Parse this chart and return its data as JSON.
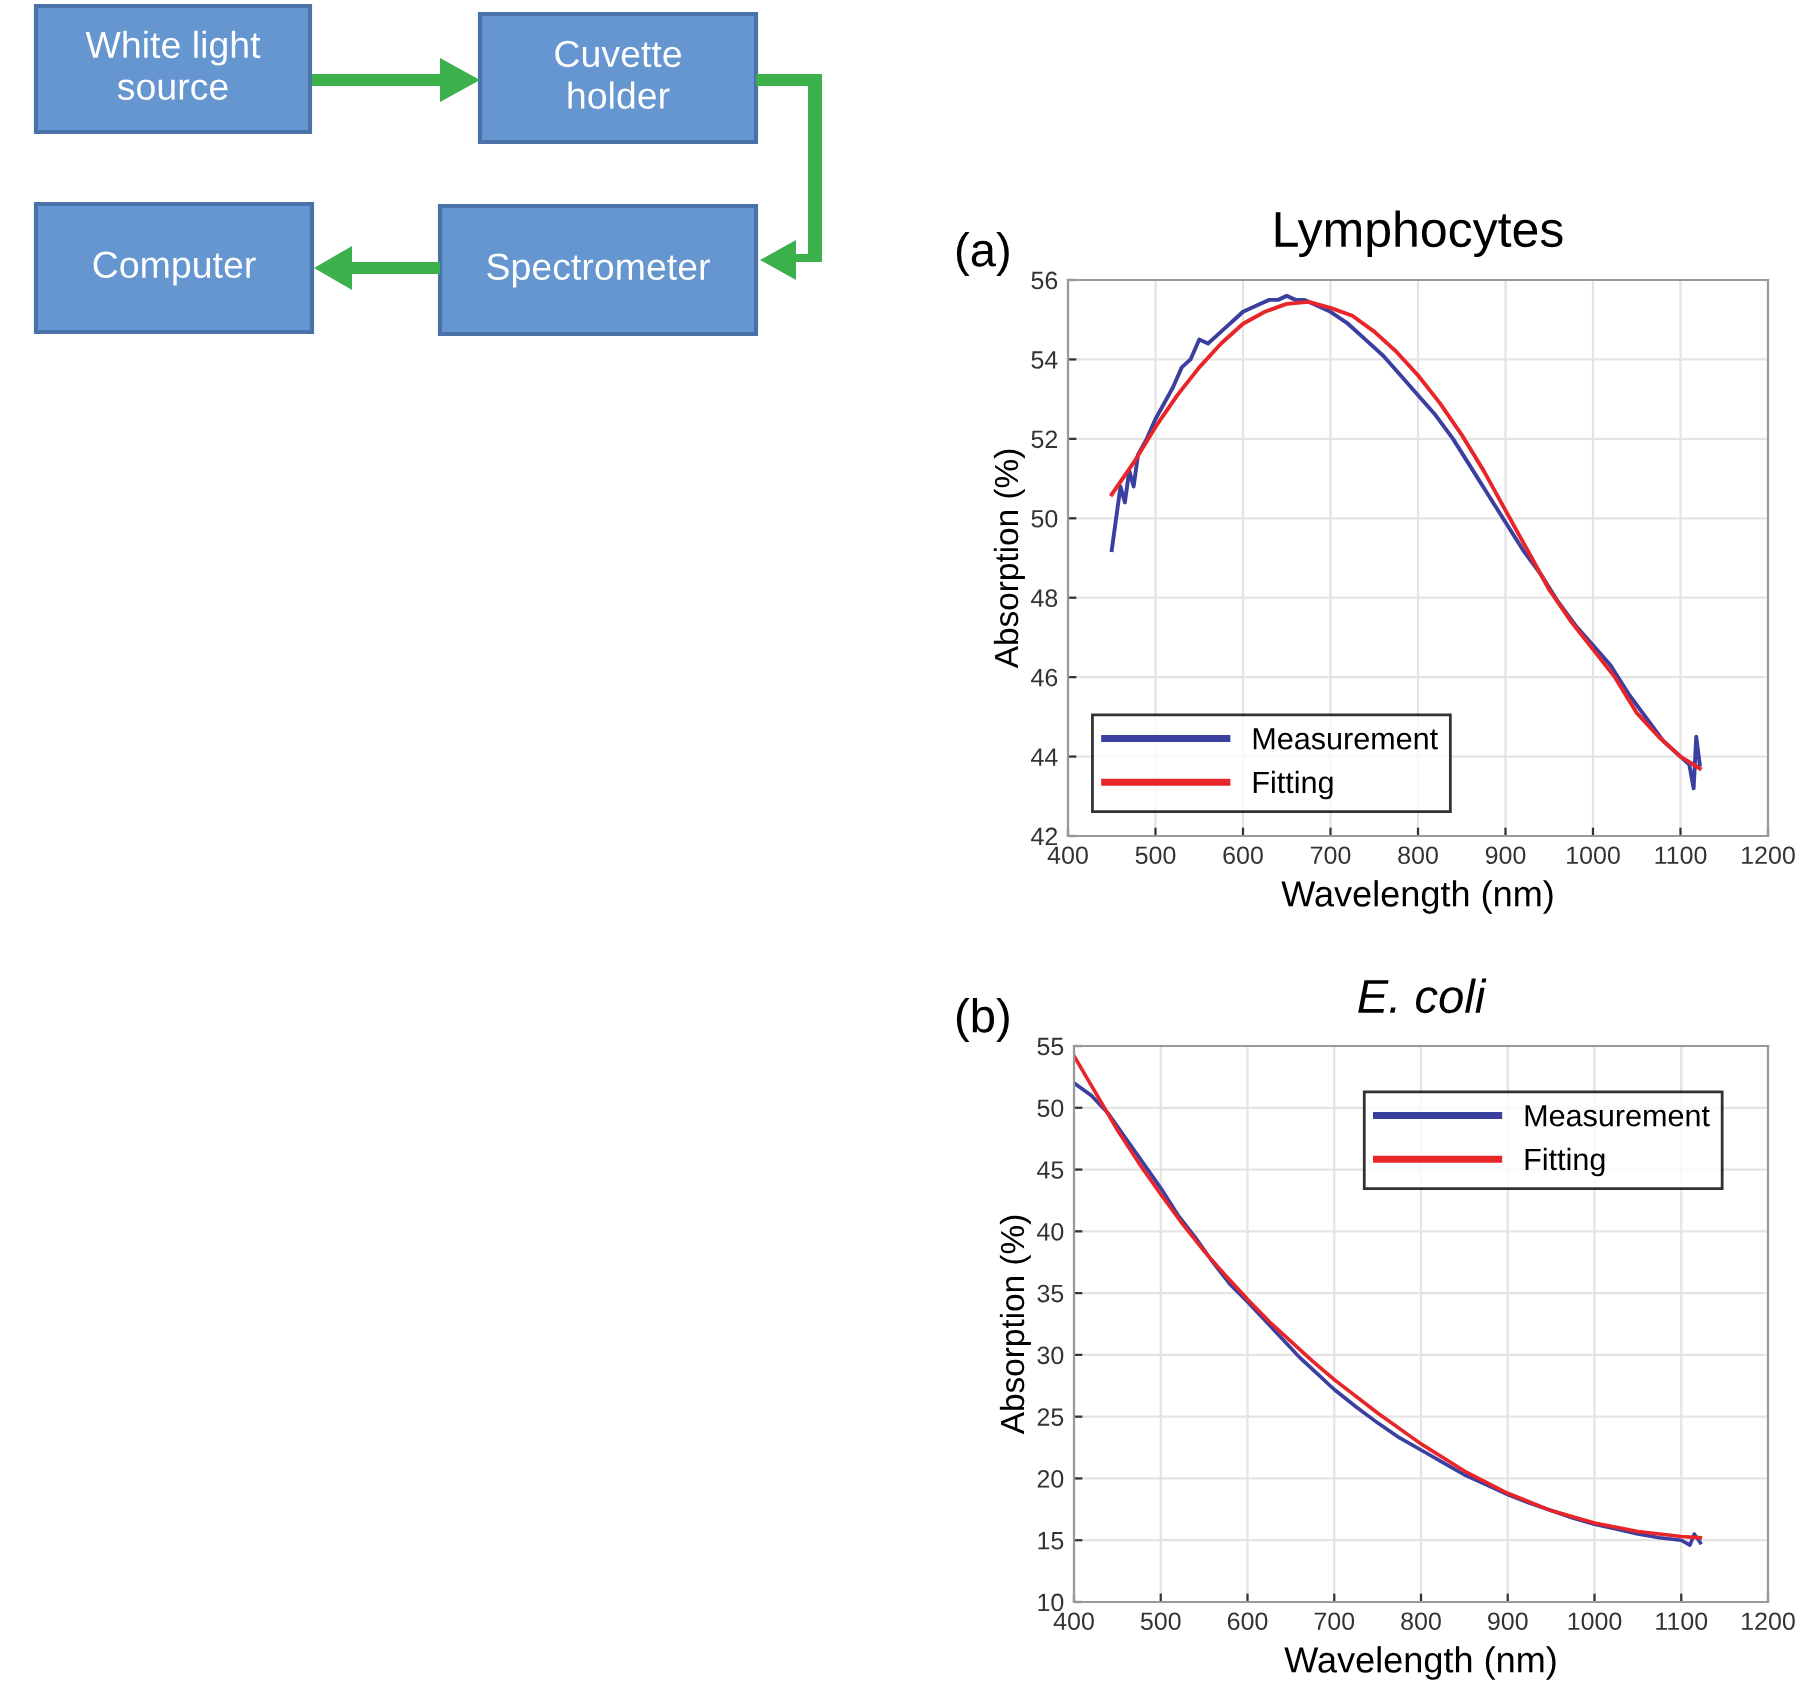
{
  "chart_data": [
    {
      "type": "other",
      "annotations": [
        "White light\nsource",
        "Cuvette\nholder",
        "Spectrometer",
        "Computer"
      ]
    },
    {
      "type": "line",
      "title": "Lymphocytes",
      "xlabel": "Wavelength (nm)",
      "ylabel": "Absorption (%)",
      "annotations": [
        "(a)"
      ],
      "xlim": [
        400,
        1200
      ],
      "xticks": [
        400,
        500,
        600,
        700,
        800,
        900,
        1000,
        1100,
        1200
      ],
      "ylim": [
        42,
        56
      ],
      "yticks": [
        42,
        44,
        46,
        48,
        50,
        52,
        54,
        56
      ],
      "grid": true,
      "legend": "bottom left",
      "series": [
        {
          "name": "Measurement",
          "color": "#3a3fa0",
          "x": [
            450,
            455,
            460,
            465,
            470,
            475,
            480,
            490,
            500,
            510,
            520,
            530,
            540,
            550,
            560,
            570,
            580,
            590,
            600,
            610,
            620,
            630,
            640,
            650,
            660,
            670,
            680,
            690,
            700,
            720,
            740,
            760,
            780,
            800,
            820,
            840,
            860,
            880,
            900,
            920,
            940,
            960,
            980,
            1000,
            1020,
            1040,
            1060,
            1080,
            1100,
            1110,
            1115,
            1118,
            1122
          ],
          "values": [
            49.2,
            50.0,
            50.8,
            50.4,
            51.2,
            50.8,
            51.6,
            52.0,
            52.5,
            52.9,
            53.3,
            53.8,
            54.0,
            54.5,
            54.4,
            54.6,
            54.8,
            55.0,
            55.2,
            55.3,
            55.4,
            55.5,
            55.5,
            55.6,
            55.5,
            55.5,
            55.4,
            55.3,
            55.2,
            54.9,
            54.5,
            54.1,
            53.6,
            53.1,
            52.6,
            52.0,
            51.3,
            50.6,
            49.9,
            49.2,
            48.6,
            47.9,
            47.3,
            46.8,
            46.3,
            45.6,
            45.0,
            44.4,
            44.0,
            43.8,
            43.2,
            44.5,
            43.8
          ]
        },
        {
          "name": "Fitting",
          "color": "#e8262a",
          "x": [
            450,
            475,
            500,
            525,
            550,
            575,
            600,
            625,
            650,
            675,
            700,
            725,
            750,
            775,
            800,
            825,
            850,
            875,
            900,
            925,
            950,
            975,
            1000,
            1025,
            1050,
            1075,
            1100,
            1122
          ],
          "values": [
            50.6,
            51.4,
            52.3,
            53.1,
            53.8,
            54.4,
            54.9,
            55.2,
            55.4,
            55.45,
            55.3,
            55.1,
            54.7,
            54.2,
            53.6,
            52.9,
            52.1,
            51.2,
            50.2,
            49.2,
            48.2,
            47.4,
            46.7,
            46.0,
            45.1,
            44.5,
            44.0,
            43.7
          ]
        }
      ]
    },
    {
      "type": "line",
      "title": "E. coli",
      "xlabel": "Wavelength (nm)",
      "ylabel": "Absorption (%)",
      "annotations": [
        "(b)"
      ],
      "xlim": [
        400,
        1200
      ],
      "xticks": [
        400,
        500,
        600,
        700,
        800,
        900,
        1000,
        1100,
        1200
      ],
      "ylim": [
        10,
        55
      ],
      "yticks": [
        10,
        15,
        20,
        25,
        30,
        35,
        40,
        45,
        50,
        55
      ],
      "grid": true,
      "legend": "top right",
      "series": [
        {
          "name": "Measurement",
          "color": "#3a3fa0",
          "x": [
            400,
            410,
            420,
            440,
            460,
            480,
            500,
            520,
            540,
            560,
            580,
            600,
            620,
            640,
            660,
            680,
            700,
            725,
            750,
            775,
            800,
            825,
            850,
            875,
            900,
            925,
            950,
            975,
            1000,
            1025,
            1050,
            1075,
            1100,
            1110,
            1115,
            1122
          ],
          "values": [
            52.0,
            51.5,
            51.0,
            49.5,
            47.5,
            45.5,
            43.5,
            41.3,
            39.5,
            37.5,
            35.7,
            34.3,
            32.8,
            31.3,
            29.8,
            28.5,
            27.2,
            25.8,
            24.5,
            23.3,
            22.3,
            21.3,
            20.3,
            19.5,
            18.7,
            18.0,
            17.4,
            16.8,
            16.3,
            15.9,
            15.5,
            15.2,
            15.0,
            14.6,
            15.5,
            14.8
          ]
        },
        {
          "name": "Fitting",
          "color": "#e8262a",
          "x": [
            400,
            425,
            450,
            475,
            500,
            525,
            550,
            575,
            600,
            625,
            650,
            675,
            700,
            750,
            800,
            850,
            900,
            950,
            1000,
            1050,
            1100,
            1122
          ],
          "values": [
            54.2,
            51.2,
            48.2,
            45.5,
            43.0,
            40.6,
            38.4,
            36.4,
            34.5,
            32.7,
            31.1,
            29.5,
            28.0,
            25.3,
            22.8,
            20.6,
            18.8,
            17.4,
            16.4,
            15.7,
            15.3,
            15.2
          ]
        }
      ]
    }
  ]
}
